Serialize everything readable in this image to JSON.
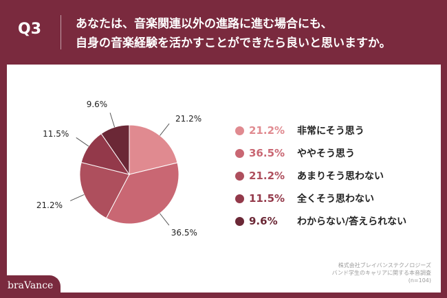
{
  "header": {
    "question_number": "Q3",
    "question_line1": "あなたは、音楽関連以外の進路に進む場合にも、",
    "question_line2": "自身の音楽経験を活かすことができたら良いと思いますか。"
  },
  "chart_data": {
    "type": "pie",
    "categories": [
      "非常にそう思う",
      "ややそう思う",
      "あまりそう思わない",
      "全くそう思わない",
      "わからない/答えられない"
    ],
    "values": [
      21.2,
      36.5,
      21.2,
      11.5,
      9.6
    ],
    "value_labels": [
      "21.2%",
      "36.5%",
      "21.2%",
      "11.5%",
      "9.6%"
    ],
    "colors": [
      "#e08a90",
      "#c96773",
      "#ae4f5d",
      "#93394a",
      "#6b2836"
    ],
    "legend_placement": "right",
    "start_angle": "12 o'clock",
    "direction": "clockwise"
  },
  "legend": {
    "items": [
      {
        "pct": "21.2%",
        "label": "非常にそう思う",
        "color": "#e08a90"
      },
      {
        "pct": "36.5%",
        "label": "ややそう思う",
        "color": "#c96773"
      },
      {
        "pct": "21.2%",
        "label": "あまりそう思わない",
        "color": "#ae4f5d"
      },
      {
        "pct": "11.5%",
        "label": "全くそう思わない",
        "color": "#93394a"
      },
      {
        "pct": "9.6%",
        "label": "わからない/答えられない",
        "color": "#6b2836"
      }
    ]
  },
  "source": {
    "line1": "株式会社ブレイバンステクノロジーズ",
    "line2": "バンド学生のキャリアに関する本音調査",
    "line3": "(n=104)"
  },
  "brand": {
    "name": "braVance"
  },
  "colors": {
    "background": "#7a2a3e",
    "panel": "#ffffff"
  }
}
